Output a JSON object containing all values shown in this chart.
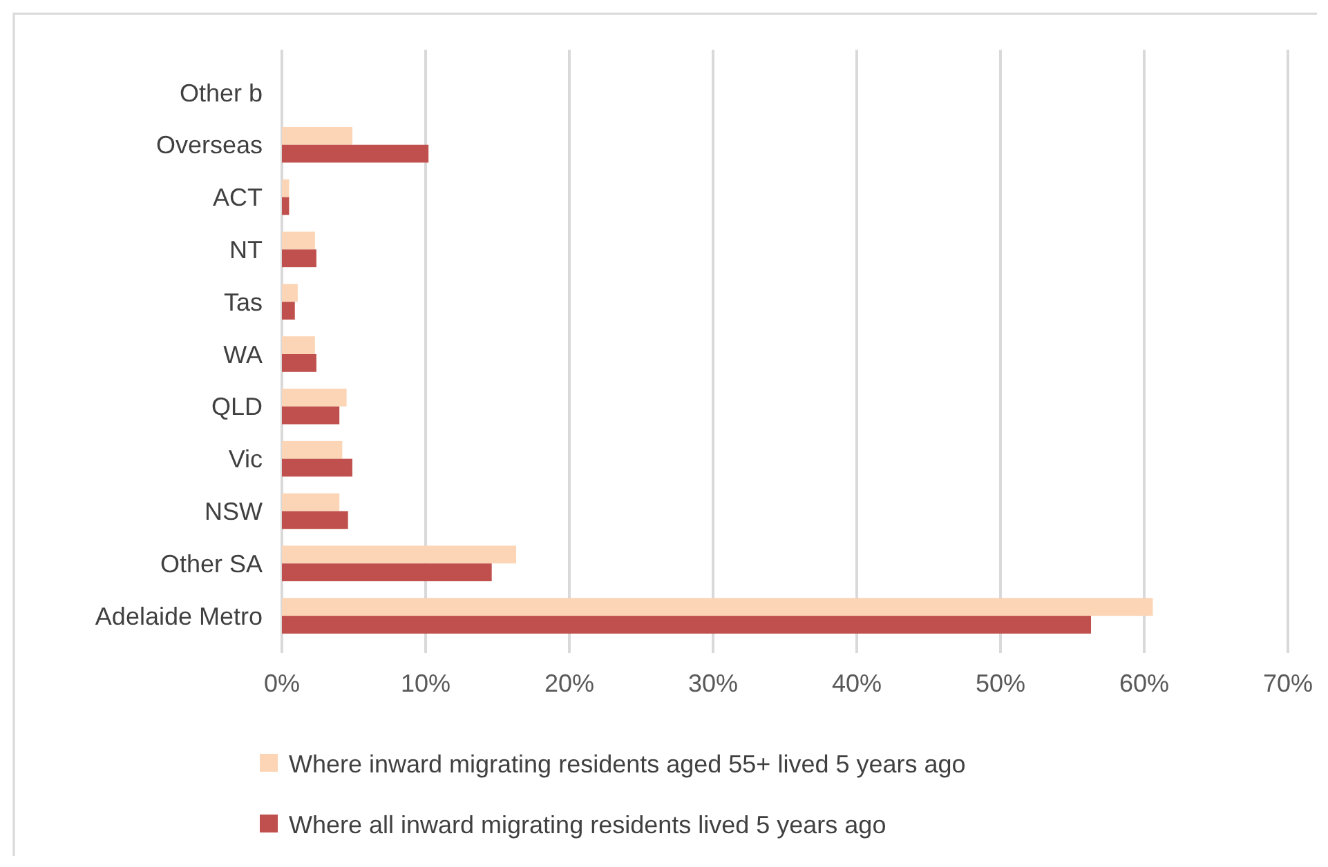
{
  "chart_data": {
    "type": "bar",
    "orientation": "horizontal",
    "categories": [
      "Other b",
      "Overseas",
      "ACT",
      "NT",
      "Tas",
      "WA",
      "QLD",
      "Vic",
      "NSW",
      "Other SA",
      "Adelaide Metro"
    ],
    "series": [
      {
        "name": "Where inward migrating residents aged 55+ lived 5 years ago",
        "color": "#fbd5b5",
        "values": [
          0,
          4.9,
          0.5,
          2.3,
          1.1,
          2.3,
          4.5,
          4.2,
          4.0,
          16.3,
          60.6
        ]
      },
      {
        "name": "Where all inward migrating residents lived 5 years ago",
        "color": "#c0504d",
        "values": [
          0,
          10.2,
          0.5,
          2.4,
          0.9,
          2.4,
          4.0,
          4.9,
          4.6,
          14.6,
          56.3
        ]
      }
    ],
    "xlim": [
      0,
      70
    ],
    "xticks": [
      {
        "value": 0,
        "label": "0%"
      },
      {
        "value": 10,
        "label": "10%"
      },
      {
        "value": 20,
        "label": "20%"
      },
      {
        "value": 30,
        "label": "30%"
      },
      {
        "value": 40,
        "label": "40%"
      },
      {
        "value": 50,
        "label": "50%"
      },
      {
        "value": 60,
        "label": "60%"
      },
      {
        "value": 70,
        "label": "70%"
      }
    ],
    "grid": "x",
    "legend": "bottom"
  }
}
